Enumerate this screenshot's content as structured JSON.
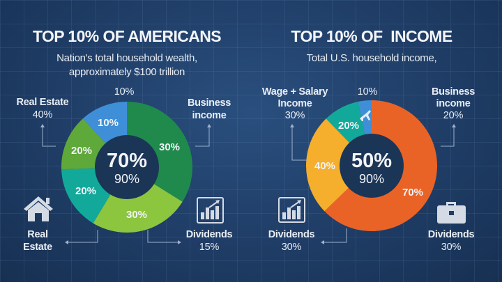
{
  "colors": {
    "background": "#1f3d66",
    "dark_green": "#1f8a4c",
    "lime": "#8cc63f",
    "teal": "#12a99b",
    "green": "#5fa83a",
    "blue": "#3f8fd8",
    "orange": "#ea6326",
    "yellow": "#f6ae2d",
    "center": "#1b3556"
  },
  "chart_data": [
    {
      "type": "pie",
      "donut": true,
      "title": "TOP 10% OF AMERICANS",
      "subtitle": [
        "Nation's total household wealth,",
        "approximately $100 trillion"
      ],
      "center_value": "70%",
      "center_sub": "90%",
      "slices": [
        {
          "label": "30%",
          "value": 30,
          "color": "#1f8a4c"
        },
        {
          "label": "30%",
          "value": 30,
          "color": "#8cc63f"
        },
        {
          "label": "20%",
          "value": 20,
          "color": "#12a99b"
        },
        {
          "label": "20%",
          "value": 20,
          "color": "#5fa83a"
        },
        {
          "label": "10%",
          "value": 10,
          "color": "#3f8fd8"
        }
      ],
      "annotations": {
        "top": "10%",
        "real_estate_top": {
          "name": "Real Estate",
          "value": "40%"
        },
        "business": {
          "line1": "Business",
          "line2": "income"
        },
        "real_estate_bottom": {
          "line1": "Real",
          "line2": "Estate",
          "icon": "house-icon"
        },
        "dividends": {
          "name": "Dividends",
          "value": "15%",
          "icon": "bar-chart-icon"
        }
      }
    },
    {
      "type": "pie",
      "donut": true,
      "title": "TOP 10% OF  INCOME",
      "subtitle": [
        "Total U.S. household income,"
      ],
      "center_value": "50%",
      "center_sub": "90%",
      "slices": [
        {
          "label": "70%",
          "value": 70,
          "color": "#ea6326"
        },
        {
          "label": "40%",
          "value": 40,
          "color": "#f6ae2d"
        },
        {
          "label": "20%",
          "value": 20,
          "color": "#12a99b"
        },
        {
          "label": "",
          "value": 10,
          "color": "#3f8fd8",
          "icon": "airplane-icon"
        }
      ],
      "annotations": {
        "top": "10%",
        "wage": {
          "line1": "Wage + Salary",
          "line2": "Income",
          "value": "30%"
        },
        "business": {
          "line1": "Business",
          "line2": "income",
          "value": "20%"
        },
        "dividends_left": {
          "name": "Dividends",
          "value": "30%",
          "icon": "bar-chart-icon"
        },
        "dividends_right": {
          "name": "Dividends",
          "value": "30%",
          "icon": "briefcase-icon"
        }
      }
    }
  ]
}
